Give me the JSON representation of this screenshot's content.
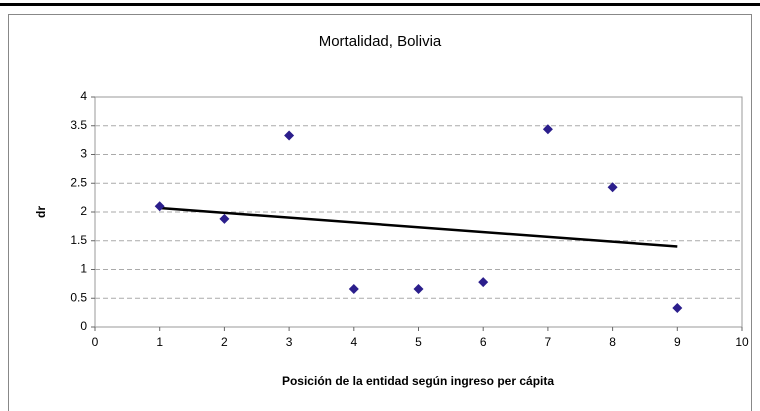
{
  "chart_data": {
    "type": "scatter",
    "title": "Mortalidad, Bolivia",
    "x_label": "Posición de la entidad según ingreso per cápita",
    "y_label": "dr",
    "x": [
      1,
      2,
      3,
      4,
      5,
      6,
      7,
      8,
      9
    ],
    "values": [
      2.1,
      1.88,
      3.33,
      0.66,
      0.66,
      0.78,
      3.44,
      2.43,
      0.33
    ],
    "color": "#2b1e8c",
    "trendline": {
      "x": [
        1,
        9
      ],
      "values": [
        2.07,
        1.4
      ],
      "color": "#000000"
    },
    "xlim": [
      0,
      10
    ],
    "xticks": [
      0,
      1,
      2,
      3,
      4,
      5,
      6,
      7,
      8,
      9,
      10
    ],
    "ylim": [
      0,
      4
    ],
    "yticks": [
      0,
      0.5,
      1,
      1.5,
      2,
      2.5,
      3,
      3.5,
      4
    ],
    "grid": true
  }
}
